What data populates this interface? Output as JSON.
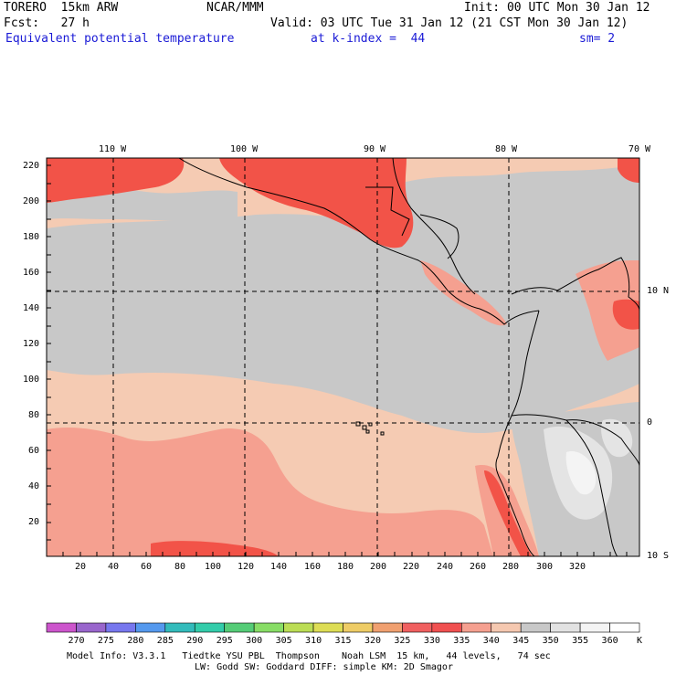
{
  "header": {
    "model": "TORERO  15km ARW",
    "org": "NCAR/MMM",
    "init": "Init: 00 UTC Mon 30 Jan 12",
    "fcst": "Fcst:   27 h",
    "valid": "Valid: 03 UTC Tue 31 Jan 12 (21 CST Mon 30 Jan 12)",
    "field": "Equivalent potential temperature",
    "level": "at k-index =  44",
    "smooth": "sm= 2"
  },
  "axes": {
    "x_ticks": [
      "20",
      "40",
      "60",
      "80",
      "100",
      "120",
      "140",
      "160",
      "180",
      "200",
      "220",
      "240",
      "260",
      "280",
      "300",
      "320"
    ],
    "y_ticks": [
      "220",
      "200",
      "180",
      "160",
      "140",
      "120",
      "100",
      "80",
      "60",
      "40",
      "20"
    ],
    "lon_labels": [
      "110 W",
      "100 W",
      "90 W",
      "80 W",
      "70 W"
    ],
    "lat_labels": [
      "10 N",
      "0",
      "10 S"
    ]
  },
  "colorbar": {
    "levels": [
      "270",
      "275",
      "280",
      "285",
      "290",
      "295",
      "300",
      "305",
      "310",
      "315",
      "320",
      "325",
      "330",
      "335",
      "340",
      "345",
      "350",
      "355",
      "360"
    ],
    "unit": "K",
    "colors": [
      "#cc55cc",
      "#9966cc",
      "#7777ee",
      "#5599ee",
      "#33bbbb",
      "#33ccaa",
      "#55cc77",
      "#88dd66",
      "#bbdd55",
      "#dddd55",
      "#eecc66",
      "#f0a070",
      "#f06060",
      "#f05050",
      "#f5a090",
      "#f5c8b0",
      "#c8c8c8",
      "#e2e2e2",
      "#f4f4f4",
      "#ffffff"
    ]
  },
  "map_colors": {
    "c335": "#f25348",
    "c340": "#f5a090",
    "c345": "#f5cbb3",
    "c350": "#c8c8c8",
    "c355": "#e4e4e4",
    "c360": "#f4f4f4"
  },
  "footer": {
    "line1": "Model Info: V3.3.1   Tiedtke YSU PBL  Thompson    Noah LSM  15 km,   44 levels,   74 sec",
    "line2": "LW: Godd SW: Goddard DIFF: simple KM: 2D Smagor"
  }
}
